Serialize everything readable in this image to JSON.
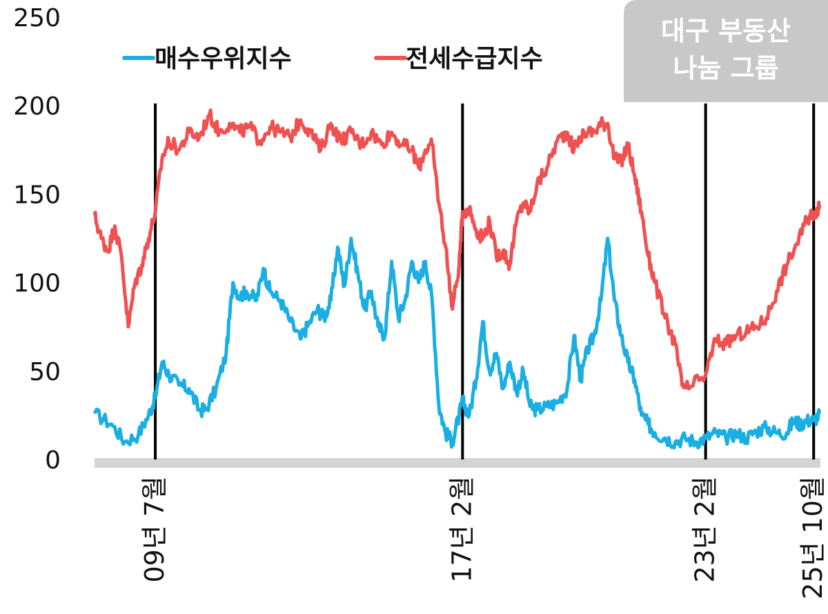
{
  "chart_data": {
    "type": "line",
    "title": "",
    "xlabel": "",
    "ylabel": "",
    "ylim": [
      0,
      250
    ],
    "yticks": [
      0,
      50,
      100,
      150,
      200,
      250
    ],
    "y_tick_labels": [
      "0",
      "50",
      "100",
      "150",
      "200",
      "250"
    ],
    "xlim": [
      "2008-01",
      "2025-12"
    ],
    "grid": false,
    "legend_position": "top-left",
    "markers": [
      {
        "date": "2009-07",
        "label": "09년 7월"
      },
      {
        "date": "2017-02",
        "label": "17년 2월"
      },
      {
        "date": "2023-02",
        "label": "23년 2월"
      },
      {
        "date": "2025-10",
        "label": "25년 10월"
      }
    ],
    "series": [
      {
        "name": "매수우위지수",
        "color": "#1aaee2",
        "points": [
          [
            "2008-01",
            26
          ],
          [
            "2008-06",
            20
          ],
          [
            "2008-10",
            10
          ],
          [
            "2009-02",
            14
          ],
          [
            "2009-05",
            25
          ],
          [
            "2009-07",
            35
          ],
          [
            "2009-09",
            55
          ],
          [
            "2009-11",
            48
          ],
          [
            "2010-02",
            42
          ],
          [
            "2010-05",
            40
          ],
          [
            "2010-08",
            28
          ],
          [
            "2010-10",
            28
          ],
          [
            "2011-01",
            40
          ],
          [
            "2011-04",
            60
          ],
          [
            "2011-06",
            100
          ],
          [
            "2011-08",
            92
          ],
          [
            "2011-10",
            95
          ],
          [
            "2012-01",
            90
          ],
          [
            "2012-03",
            108
          ],
          [
            "2012-05",
            95
          ],
          [
            "2012-08",
            90
          ],
          [
            "2012-11",
            78
          ],
          [
            "2013-02",
            68
          ],
          [
            "2013-04",
            75
          ],
          [
            "2013-07",
            85
          ],
          [
            "2013-09",
            80
          ],
          [
            "2013-11",
            90
          ],
          [
            "2014-01",
            120
          ],
          [
            "2014-03",
            98
          ],
          [
            "2014-05",
            125
          ],
          [
            "2014-07",
            105
          ],
          [
            "2014-09",
            85
          ],
          [
            "2014-11",
            95
          ],
          [
            "2015-01",
            75
          ],
          [
            "2015-03",
            70
          ],
          [
            "2015-05",
            112
          ],
          [
            "2015-07",
            80
          ],
          [
            "2015-09",
            90
          ],
          [
            "2015-11",
            112
          ],
          [
            "2016-01",
            100
          ],
          [
            "2016-03",
            112
          ],
          [
            "2016-05",
            90
          ],
          [
            "2016-07",
            30
          ],
          [
            "2016-09",
            15
          ],
          [
            "2016-11",
            10
          ],
          [
            "2017-01",
            25
          ],
          [
            "2017-02",
            33
          ],
          [
            "2017-04",
            25
          ],
          [
            "2017-06",
            45
          ],
          [
            "2017-08",
            78
          ],
          [
            "2017-10",
            50
          ],
          [
            "2017-12",
            60
          ],
          [
            "2018-02",
            40
          ],
          [
            "2018-04",
            55
          ],
          [
            "2018-06",
            38
          ],
          [
            "2018-08",
            50
          ],
          [
            "2018-10",
            30
          ],
          [
            "2018-12",
            28
          ],
          [
            "2019-03",
            30
          ],
          [
            "2019-06",
            32
          ],
          [
            "2019-09",
            40
          ],
          [
            "2019-11",
            70
          ],
          [
            "2020-01",
            45
          ],
          [
            "2020-03",
            62
          ],
          [
            "2020-05",
            70
          ],
          [
            "2020-07",
            90
          ],
          [
            "2020-09",
            125
          ],
          [
            "2020-11",
            90
          ],
          [
            "2021-01",
            70
          ],
          [
            "2021-03",
            55
          ],
          [
            "2021-05",
            45
          ],
          [
            "2021-07",
            25
          ],
          [
            "2021-09",
            20
          ],
          [
            "2021-11",
            15
          ],
          [
            "2022-02",
            12
          ],
          [
            "2022-05",
            10
          ],
          [
            "2022-08",
            12
          ],
          [
            "2022-11",
            10
          ],
          [
            "2023-02",
            12
          ],
          [
            "2023-05",
            15
          ],
          [
            "2023-08",
            12
          ],
          [
            "2023-11",
            15
          ],
          [
            "2024-02",
            12
          ],
          [
            "2024-05",
            16
          ],
          [
            "2024-08",
            18
          ],
          [
            "2024-11",
            15
          ],
          [
            "2025-02",
            15
          ],
          [
            "2025-04",
            22
          ],
          [
            "2025-06",
            20
          ],
          [
            "2025-08",
            22
          ],
          [
            "2025-10",
            22
          ],
          [
            "2025-12",
            26
          ]
        ]
      },
      {
        "name": "전세수급지수",
        "color": "#f05050",
        "points": [
          [
            "2008-01",
            138
          ],
          [
            "2008-03",
            125
          ],
          [
            "2008-05",
            118
          ],
          [
            "2008-07",
            132
          ],
          [
            "2008-09",
            115
          ],
          [
            "2008-11",
            75
          ],
          [
            "2009-01",
            100
          ],
          [
            "2009-03",
            110
          ],
          [
            "2009-05",
            125
          ],
          [
            "2009-07",
            140
          ],
          [
            "2009-09",
            170
          ],
          [
            "2009-11",
            180
          ],
          [
            "2010-02",
            175
          ],
          [
            "2010-05",
            185
          ],
          [
            "2010-08",
            182
          ],
          [
            "2010-11",
            195
          ],
          [
            "2011-02",
            185
          ],
          [
            "2011-05",
            190
          ],
          [
            "2011-08",
            185
          ],
          [
            "2011-11",
            188
          ],
          [
            "2012-02",
            180
          ],
          [
            "2012-05",
            188
          ],
          [
            "2012-08",
            185
          ],
          [
            "2012-11",
            182
          ],
          [
            "2013-02",
            192
          ],
          [
            "2013-05",
            185
          ],
          [
            "2013-08",
            175
          ],
          [
            "2013-11",
            190
          ],
          [
            "2014-02",
            180
          ],
          [
            "2014-05",
            185
          ],
          [
            "2014-08",
            178
          ],
          [
            "2014-11",
            185
          ],
          [
            "2015-02",
            178
          ],
          [
            "2015-05",
            185
          ],
          [
            "2015-08",
            178
          ],
          [
            "2015-11",
            175
          ],
          [
            "2016-01",
            165
          ],
          [
            "2016-03",
            175
          ],
          [
            "2016-05",
            178
          ],
          [
            "2016-07",
            145
          ],
          [
            "2016-09",
            120
          ],
          [
            "2016-11",
            85
          ],
          [
            "2017-01",
            110
          ],
          [
            "2017-02",
            140
          ],
          [
            "2017-04",
            142
          ],
          [
            "2017-06",
            130
          ],
          [
            "2017-08",
            125
          ],
          [
            "2017-10",
            135
          ],
          [
            "2017-12",
            115
          ],
          [
            "2018-02",
            118
          ],
          [
            "2018-04",
            110
          ],
          [
            "2018-06",
            135
          ],
          [
            "2018-08",
            145
          ],
          [
            "2018-10",
            140
          ],
          [
            "2018-12",
            155
          ],
          [
            "2019-03",
            165
          ],
          [
            "2019-06",
            180
          ],
          [
            "2019-09",
            185
          ],
          [
            "2019-11",
            175
          ],
          [
            "2020-02",
            185
          ],
          [
            "2020-05",
            185
          ],
          [
            "2020-07",
            190
          ],
          [
            "2020-09",
            190
          ],
          [
            "2020-11",
            170
          ],
          [
            "2021-01",
            168
          ],
          [
            "2021-03",
            178
          ],
          [
            "2021-05",
            160
          ],
          [
            "2021-07",
            140
          ],
          [
            "2021-09",
            115
          ],
          [
            "2021-11",
            100
          ],
          [
            "2022-02",
            80
          ],
          [
            "2022-05",
            65
          ],
          [
            "2022-07",
            42
          ],
          [
            "2022-09",
            40
          ],
          [
            "2023-02",
            48
          ],
          [
            "2023-05",
            68
          ],
          [
            "2023-08",
            65
          ],
          [
            "2023-11",
            70
          ],
          [
            "2024-02",
            72
          ],
          [
            "2024-05",
            75
          ],
          [
            "2024-08",
            80
          ],
          [
            "2024-11",
            95
          ],
          [
            "2025-02",
            110
          ],
          [
            "2025-05",
            122
          ],
          [
            "2025-08",
            135
          ],
          [
            "2025-10",
            140
          ],
          [
            "2025-12",
            142
          ]
        ]
      }
    ]
  },
  "badge": {
    "line1": "대구 부동산",
    "line2": "나눔 그룹",
    "bg_color": "#c8c8c8"
  }
}
